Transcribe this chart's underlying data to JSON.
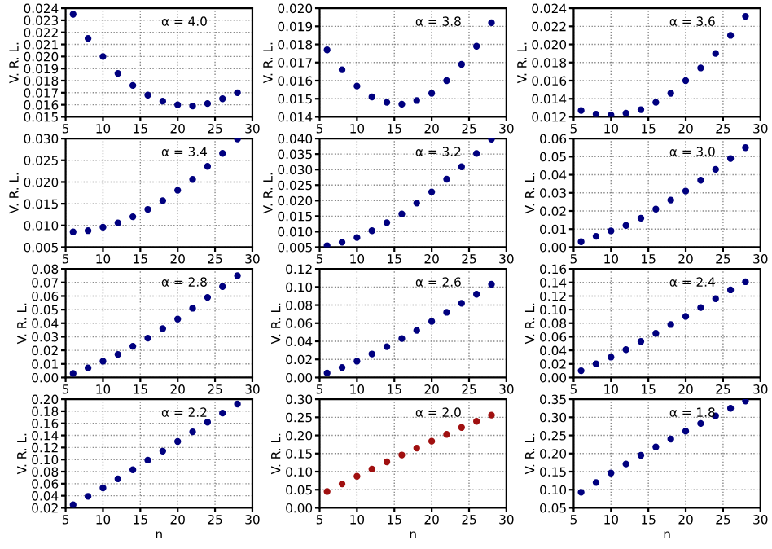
{
  "chart_data": [
    {
      "type": "scatter",
      "ylabel": "V. R. L.",
      "annotations": [
        "α = 4.0"
      ],
      "x": [
        6,
        8,
        10,
        12,
        14,
        16,
        18,
        20,
        22,
        24,
        26,
        28
      ],
      "series": [
        {
          "color": "#00007f",
          "values": [
            0.0235,
            0.0215,
            0.02,
            0.0186,
            0.0176,
            0.0168,
            0.0163,
            0.016,
            0.0159,
            0.0161,
            0.0165,
            0.017
          ]
        }
      ],
      "xlim": [
        5,
        30
      ],
      "xticks": [
        5,
        10,
        15,
        20,
        25,
        30
      ],
      "ylim": [
        0.015,
        0.024
      ],
      "yticks": [
        0.015,
        0.016,
        0.017,
        0.018,
        0.019,
        {
          "value": 0.02,
          "label": "0.020"
        },
        0.021,
        0.022,
        0.023,
        0.024
      ],
      "grid": true,
      "marker": "circle"
    },
    {
      "type": "scatter",
      "ylabel": "V. R. L.",
      "annotations": [
        "α = 3.8"
      ],
      "x": [
        6,
        8,
        10,
        12,
        14,
        16,
        18,
        20,
        22,
        24,
        26,
        28
      ],
      "series": [
        {
          "color": "#00007f",
          "values": [
            0.0177,
            0.0166,
            0.0157,
            0.0151,
            0.0148,
            0.0147,
            0.0149,
            0.0153,
            0.016,
            0.0169,
            0.0179,
            0.0192
          ]
        }
      ],
      "xlim": [
        5,
        30
      ],
      "xticks": [
        5,
        10,
        15,
        20,
        25,
        30
      ],
      "ylim": [
        0.014,
        0.02
      ],
      "yticks": [
        0.014,
        0.015,
        0.016,
        0.017,
        0.018,
        0.019,
        {
          "value": 0.02,
          "label": "0.020"
        }
      ],
      "grid": true,
      "marker": "circle"
    },
    {
      "type": "scatter",
      "ylabel": "V. R. L.",
      "annotations": [
        "α = 3.6"
      ],
      "x": [
        6,
        8,
        10,
        12,
        14,
        16,
        18,
        20,
        22,
        24,
        26,
        28
      ],
      "series": [
        {
          "color": "#00007f",
          "values": [
            0.0127,
            0.0123,
            0.0122,
            0.0124,
            0.0128,
            0.0136,
            0.0146,
            0.016,
            0.0174,
            0.019,
            0.021,
            0.0231
          ]
        }
      ],
      "xlim": [
        5,
        30
      ],
      "xticks": [
        5,
        10,
        15,
        20,
        25,
        30
      ],
      "ylim": [
        0.012,
        0.024
      ],
      "yticks": [
        0.012,
        0.014,
        0.016,
        0.018,
        {
          "value": 0.02,
          "label": "0.020"
        },
        0.022,
        0.024
      ],
      "grid": true,
      "marker": "circle"
    },
    {
      "type": "scatter",
      "ylabel": "V. R. L.",
      "annotations": [
        "α = 3.4"
      ],
      "x": [
        6,
        8,
        10,
        12,
        14,
        16,
        18,
        20,
        22,
        24,
        26,
        28
      ],
      "series": [
        {
          "color": "#00007f",
          "values": [
            0.0085,
            0.0088,
            0.0096,
            0.0106,
            0.012,
            0.0137,
            0.0157,
            0.0181,
            0.0206,
            0.0236,
            0.0266,
            0.0299
          ]
        }
      ],
      "xlim": [
        5,
        30
      ],
      "xticks": [
        5,
        10,
        15,
        20,
        25,
        30
      ],
      "ylim": [
        0.005,
        0.03
      ],
      "yticks": [
        0.005,
        {
          "value": 0.01,
          "label": "0.010"
        },
        0.015,
        {
          "value": 0.02,
          "label": "0.020"
        },
        0.025,
        {
          "value": 0.03,
          "label": "0.030"
        }
      ],
      "grid": true,
      "marker": "circle"
    },
    {
      "type": "scatter",
      "ylabel": "V. R. L.",
      "annotations": [
        "α = 3.2"
      ],
      "x": [
        6,
        8,
        10,
        12,
        14,
        16,
        18,
        20,
        22,
        24,
        26,
        28
      ],
      "series": [
        {
          "color": "#00007f",
          "values": [
            0.0055,
            0.0066,
            0.0081,
            0.0103,
            0.0129,
            0.0157,
            0.0192,
            0.0228,
            0.0269,
            0.0309,
            0.0352,
            0.0398
          ]
        }
      ],
      "xlim": [
        5,
        30
      ],
      "xticks": [
        5,
        10,
        15,
        20,
        25,
        30
      ],
      "ylim": [
        0.005,
        0.04
      ],
      "yticks": [
        0.005,
        {
          "value": 0.01,
          "label": "0.010"
        },
        0.015,
        {
          "value": 0.02,
          "label": "0.020"
        },
        0.025,
        {
          "value": 0.03,
          "label": "0.030"
        },
        0.035,
        {
          "value": 0.04,
          "label": "0.040"
        }
      ],
      "grid": true,
      "marker": "circle"
    },
    {
      "type": "scatter",
      "ylabel": "V. R. L.",
      "annotations": [
        "α = 3.0"
      ],
      "x": [
        6,
        8,
        10,
        12,
        14,
        16,
        18,
        20,
        22,
        24,
        26,
        28
      ],
      "series": [
        {
          "color": "#00007f",
          "values": [
            0.003,
            0.006,
            0.009,
            0.012,
            0.016,
            0.021,
            0.026,
            0.031,
            0.037,
            0.043,
            0.049,
            0.055
          ]
        }
      ],
      "xlim": [
        5,
        30
      ],
      "xticks": [
        5,
        10,
        15,
        20,
        25,
        30
      ],
      "ylim": [
        0,
        0.06
      ],
      "yticks": [
        {
          "value": 0,
          "label": "0.00"
        },
        0.01,
        0.02,
        0.03,
        0.04,
        0.05,
        0.06
      ],
      "grid": true,
      "marker": "circle"
    },
    {
      "type": "scatter",
      "ylabel": "V. R. L.",
      "annotations": [
        "α = 2.8"
      ],
      "x": [
        6,
        8,
        10,
        12,
        14,
        16,
        18,
        20,
        22,
        24,
        26,
        28
      ],
      "series": [
        {
          "color": "#00007f",
          "values": [
            0.003,
            0.007,
            0.012,
            0.017,
            0.023,
            0.029,
            0.036,
            0.043,
            0.051,
            0.059,
            0.067,
            0.075
          ]
        }
      ],
      "xlim": [
        5,
        30
      ],
      "xticks": [
        5,
        10,
        15,
        20,
        25,
        30
      ],
      "ylim": [
        0,
        0.08
      ],
      "yticks": [
        {
          "value": 0,
          "label": "0.00"
        },
        0.01,
        0.02,
        0.03,
        0.04,
        0.05,
        0.06,
        0.07,
        0.08
      ],
      "grid": true,
      "marker": "circle"
    },
    {
      "type": "scatter",
      "ylabel": "V. R. L.",
      "annotations": [
        "α = 2.6"
      ],
      "x": [
        6,
        8,
        10,
        12,
        14,
        16,
        18,
        20,
        22,
        24,
        26,
        28
      ],
      "series": [
        {
          "color": "#00007f",
          "values": [
            0.005,
            0.011,
            0.018,
            0.026,
            0.034,
            0.043,
            0.052,
            0.062,
            0.072,
            0.082,
            0.092,
            0.103
          ]
        }
      ],
      "xlim": [
        5,
        30
      ],
      "xticks": [
        5,
        10,
        15,
        20,
        25,
        30
      ],
      "ylim": [
        0,
        0.12
      ],
      "yticks": [
        {
          "value": 0,
          "label": "0.00"
        },
        0.02,
        0.04,
        0.06,
        0.08,
        {
          "value": 0.1,
          "label": "0.10"
        },
        0.12
      ],
      "grid": true,
      "marker": "circle"
    },
    {
      "type": "scatter",
      "ylabel": "V. R. L.",
      "annotations": [
        "α = 2.4"
      ],
      "x": [
        6,
        8,
        10,
        12,
        14,
        16,
        18,
        20,
        22,
        24,
        26,
        28
      ],
      "series": [
        {
          "color": "#00007f",
          "values": [
            0.01,
            0.02,
            0.03,
            0.041,
            0.053,
            0.065,
            0.078,
            0.09,
            0.103,
            0.116,
            0.129,
            0.141
          ]
        }
      ],
      "xlim": [
        5,
        30
      ],
      "xticks": [
        5,
        10,
        15,
        20,
        25,
        30
      ],
      "ylim": [
        0,
        0.16
      ],
      "yticks": [
        {
          "value": 0,
          "label": "0.00"
        },
        0.02,
        0.04,
        0.06,
        0.08,
        {
          "value": 0.1,
          "label": "0.10"
        },
        0.12,
        0.14,
        0.16
      ],
      "grid": true,
      "marker": "circle"
    },
    {
      "type": "scatter",
      "ylabel": "V. R. L.",
      "xlabel": "n",
      "annotations": [
        "α = 2.2"
      ],
      "x": [
        6,
        8,
        10,
        12,
        14,
        16,
        18,
        20,
        22,
        24,
        26,
        28
      ],
      "series": [
        {
          "color": "#00007f",
          "values": [
            0.025,
            0.039,
            0.053,
            0.068,
            0.083,
            0.099,
            0.114,
            0.13,
            0.146,
            0.162,
            0.177,
            0.192
          ]
        }
      ],
      "xlim": [
        5,
        30
      ],
      "xticks": [
        5,
        10,
        15,
        20,
        25,
        30
      ],
      "ylim": [
        0.02,
        0.2
      ],
      "yticks": [
        0.02,
        0.04,
        0.06,
        0.08,
        {
          "value": 0.1,
          "label": "0.10"
        },
        0.12,
        0.14,
        0.16,
        0.18,
        {
          "value": 0.2,
          "label": "0.20"
        }
      ],
      "grid": true,
      "marker": "circle"
    },
    {
      "type": "scatter",
      "ylabel": "V. R. L.",
      "xlabel": "n",
      "annotations": [
        "α = 2.0"
      ],
      "x": [
        6,
        8,
        10,
        12,
        14,
        16,
        18,
        20,
        22,
        24,
        26,
        28
      ],
      "series": [
        {
          "color": "#a01010",
          "values": [
            0.045,
            0.066,
            0.087,
            0.107,
            0.127,
            0.146,
            0.165,
            0.184,
            0.203,
            0.222,
            0.239,
            0.256
          ]
        }
      ],
      "xlim": [
        5,
        30
      ],
      "xticks": [
        5,
        10,
        15,
        20,
        25,
        30
      ],
      "ylim": [
        0,
        0.3
      ],
      "yticks": [
        {
          "value": 0,
          "label": "0.00"
        },
        0.05,
        {
          "value": 0.1,
          "label": "0.10"
        },
        0.15,
        {
          "value": 0.2,
          "label": "0.20"
        },
        0.25,
        {
          "value": 0.3,
          "label": "0.30"
        }
      ],
      "grid": true,
      "marker": "circle"
    },
    {
      "type": "scatter",
      "ylabel": "V. R. L.",
      "xlabel": "n",
      "annotations": [
        "α = 1.8"
      ],
      "x": [
        6,
        8,
        10,
        12,
        14,
        16,
        18,
        20,
        22,
        24,
        26,
        28
      ],
      "series": [
        {
          "color": "#00007f",
          "values": [
            0.093,
            0.12,
            0.146,
            0.171,
            0.195,
            0.218,
            0.24,
            0.262,
            0.283,
            0.304,
            0.325,
            0.345
          ]
        }
      ],
      "xlim": [
        5,
        30
      ],
      "xticks": [
        5,
        10,
        15,
        20,
        25,
        30
      ],
      "ylim": [
        0.05,
        0.35
      ],
      "yticks": [
        0.05,
        {
          "value": 0.1,
          "label": "0.10"
        },
        0.15,
        {
          "value": 0.2,
          "label": "0.20"
        },
        0.25,
        {
          "value": 0.3,
          "label": "0.30"
        },
        0.35
      ],
      "grid": true,
      "marker": "circle"
    }
  ]
}
